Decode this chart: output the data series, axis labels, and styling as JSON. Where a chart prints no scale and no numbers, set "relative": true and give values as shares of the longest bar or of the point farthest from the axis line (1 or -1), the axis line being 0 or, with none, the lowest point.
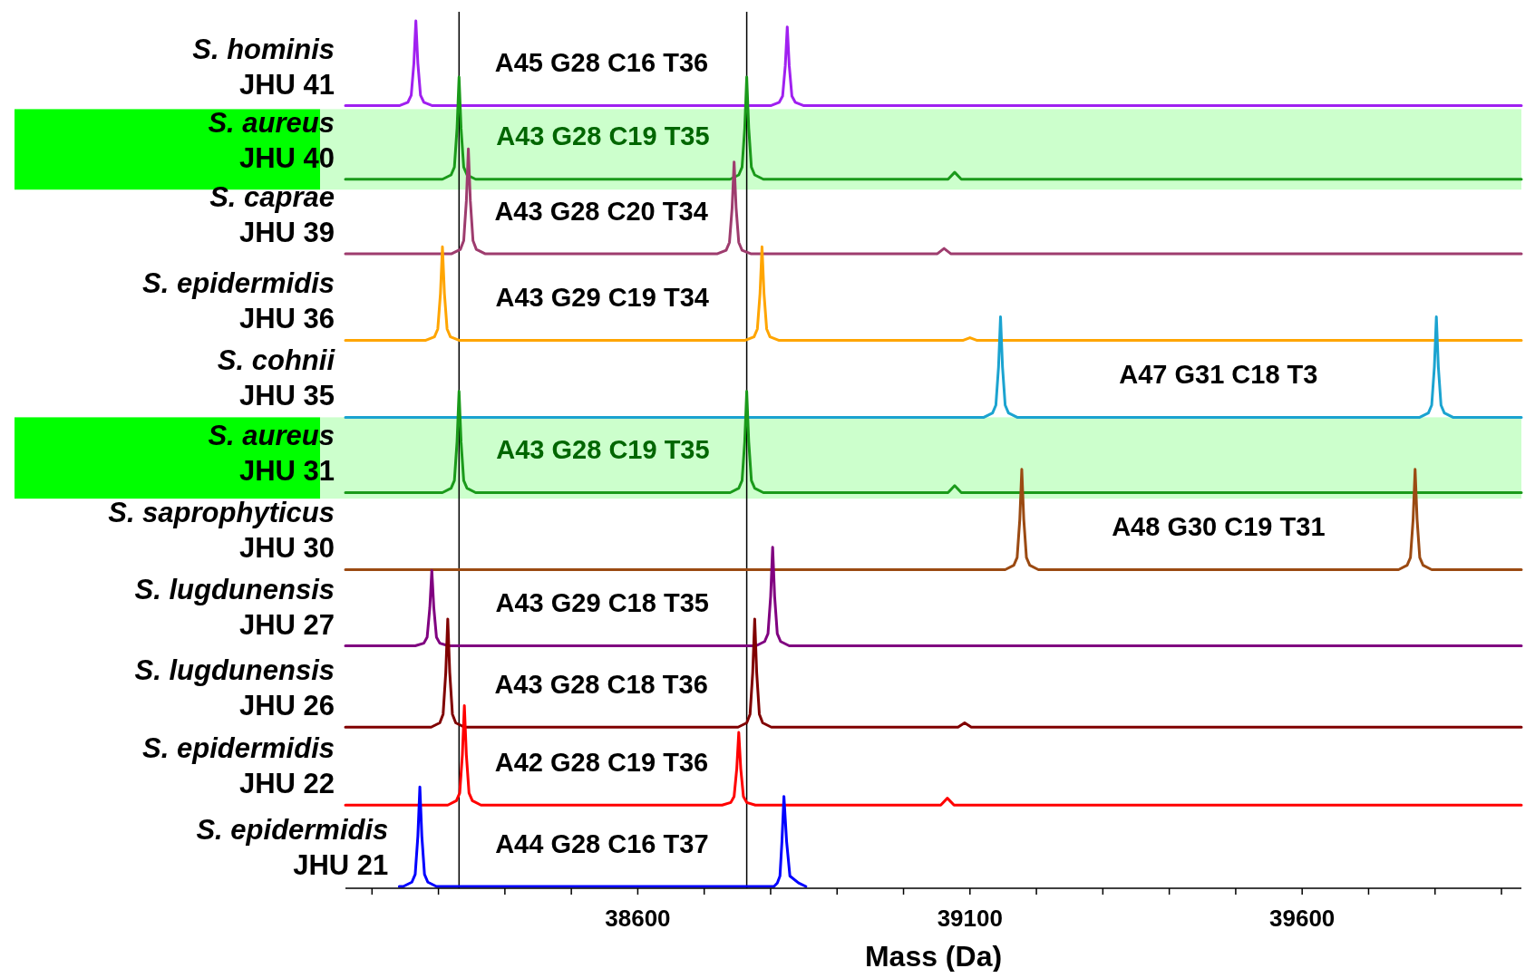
{
  "chart_data": {
    "type": "line",
    "relative": true,
    "xlabel": "Mass (Da)",
    "xlim": [
      38160,
      39930
    ],
    "xticks": [
      {
        "value": 38200,
        "label": null
      },
      {
        "value": 38300,
        "label": null
      },
      {
        "value": 38400,
        "label": null
      },
      {
        "value": 38500,
        "label": null
      },
      38600,
      {
        "value": 38700,
        "label": null
      },
      {
        "value": 38800,
        "label": null
      },
      {
        "value": 38900,
        "label": null
      },
      {
        "value": 39000,
        "label": null
      },
      39100,
      {
        "value": 39200,
        "label": null
      },
      {
        "value": 39300,
        "label": null
      },
      {
        "value": 39400,
        "label": null
      },
      {
        "value": 39500,
        "label": null
      },
      39600,
      {
        "value": 39700,
        "label": null
      },
      {
        "value": 39800,
        "label": null
      },
      {
        "value": 39900,
        "label": null
      }
    ],
    "ref_lines": [
      {
        "axis": "x",
        "value": 38331,
        "color": "#000000"
      },
      {
        "axis": "x",
        "value": 38764,
        "color": "#000000"
      }
    ],
    "bands": [
      {
        "axis": "y",
        "from": 0.805,
        "to": 0.898,
        "color": "#ccffcc"
      },
      {
        "axis": "y",
        "from": 0.448,
        "to": 0.542,
        "color": "#ccffcc"
      }
    ],
    "annotations": [
      "A45 G28 C16 T36",
      "A43 G28 C19 T35",
      "A43 G28 C20 T34",
      "A43 G29 C19 T34",
      "A47 G31 C18 T3",
      "A43 G28 C19 T35",
      "A48 G30 C19 T31",
      "A43 G29 C18 T35",
      "A43 G28 C18 T36",
      "A42 G28 C19 T36",
      "A44 G28 C16 T37"
    ],
    "series": [
      {
        "name": "S. hominis JHU 41",
        "color": "#a020f0",
        "x": [
          38160,
          38241,
          38254,
          38259,
          38263,
          38266,
          38269,
          38273,
          38278,
          38291,
          38800,
          38813,
          38818,
          38822,
          38825,
          38828,
          38832,
          38837,
          38850,
          39930
        ],
        "values": [
          0.902,
          0.902,
          0.906,
          0.914,
          0.951,
          1,
          0.951,
          0.914,
          0.906,
          0.902,
          0.902,
          0.906,
          0.913,
          0.948,
          0.993,
          0.948,
          0.913,
          0.906,
          0.902,
          0.902
        ]
      },
      {
        "name": "S. aureus JHU 40",
        "color": "#1a9a1a",
        "x": [
          38160,
          38306,
          38319,
          38324,
          38328,
          38331,
          38334,
          38338,
          38343,
          38356,
          38739,
          38752,
          38757,
          38761,
          38764,
          38767,
          38771,
          38776,
          38789,
          39067,
          39077,
          39087,
          39930
        ],
        "values": [
          0.817,
          0.817,
          0.822,
          0.831,
          0.876,
          0.935,
          0.876,
          0.831,
          0.822,
          0.817,
          0.817,
          0.822,
          0.831,
          0.876,
          0.935,
          0.876,
          0.831,
          0.822,
          0.817,
          0.817,
          0.825,
          0.817,
          0.817
        ]
      },
      {
        "name": "S. caprae JHU 39",
        "color": "#9e3c6e",
        "x": [
          38160,
          38320,
          38333,
          38338,
          38342,
          38345,
          38348,
          38352,
          38357,
          38370,
          38720,
          38733,
          38738,
          38742,
          38745,
          38748,
          38752,
          38757,
          38770,
          39051,
          39061,
          39071,
          39930
        ],
        "values": [
          0.731,
          0.731,
          0.736,
          0.746,
          0.792,
          0.852,
          0.792,
          0.746,
          0.736,
          0.731,
          0.731,
          0.735,
          0.744,
          0.784,
          0.837,
          0.784,
          0.744,
          0.735,
          0.731,
          0.731,
          0.737,
          0.731,
          0.731
        ]
      },
      {
        "name": "S. epidermidis JHU 36",
        "color": "#ffa500",
        "x": [
          38160,
          38281,
          38294,
          38299,
          38303,
          38306,
          38309,
          38313,
          38318,
          38331,
          38762,
          38775,
          38780,
          38784,
          38787,
          38790,
          38794,
          38799,
          38812,
          39090,
          39100,
          39110,
          39930
        ],
        "values": [
          0.631,
          0.631,
          0.635,
          0.644,
          0.685,
          0.739,
          0.685,
          0.644,
          0.635,
          0.631,
          0.631,
          0.635,
          0.644,
          0.685,
          0.739,
          0.685,
          0.644,
          0.635,
          0.631,
          0.631,
          0.634,
          0.631,
          0.631
        ]
      },
      {
        "name": "S. cohnii JHU 35",
        "color": "#1ba3d0",
        "x": [
          38160,
          39121,
          39134,
          39139,
          39143,
          39146,
          39149,
          39153,
          39158,
          39171,
          39777,
          39790,
          39795,
          39799,
          39802,
          39805,
          39809,
          39814,
          39827,
          39930
        ],
        "values": [
          0.542,
          0.542,
          0.547,
          0.556,
          0.6,
          0.658,
          0.6,
          0.556,
          0.547,
          0.542,
          0.542,
          0.547,
          0.556,
          0.6,
          0.658,
          0.6,
          0.556,
          0.547,
          0.542,
          0.542
        ]
      },
      {
        "name": "S. aureus JHU 31",
        "color": "#1a9a1a",
        "x": [
          38160,
          38306,
          38319,
          38324,
          38328,
          38331,
          38334,
          38338,
          38343,
          38356,
          38739,
          38752,
          38757,
          38761,
          38764,
          38767,
          38771,
          38776,
          38789,
          39067,
          39077,
          39087,
          39930
        ],
        "values": [
          0.455,
          0.455,
          0.46,
          0.469,
          0.514,
          0.572,
          0.514,
          0.469,
          0.46,
          0.455,
          0.455,
          0.46,
          0.469,
          0.514,
          0.572,
          0.514,
          0.469,
          0.46,
          0.455,
          0.455,
          0.463,
          0.455,
          0.455
        ]
      },
      {
        "name": "S. saprophyticus JHU 30",
        "color": "#9b4a12",
        "x": [
          38160,
          39153,
          39166,
          39171,
          39175,
          39178,
          39181,
          39185,
          39190,
          39203,
          39745,
          39758,
          39763,
          39767,
          39770,
          39773,
          39777,
          39782,
          39795,
          39930
        ],
        "values": [
          0.366,
          0.366,
          0.371,
          0.38,
          0.424,
          0.482,
          0.424,
          0.38,
          0.371,
          0.366,
          0.366,
          0.371,
          0.38,
          0.424,
          0.482,
          0.424,
          0.38,
          0.371,
          0.366,
          0.366
        ]
      },
      {
        "name": "S. lugdunensis JHU 27",
        "color": "#800080",
        "x": [
          38160,
          38265,
          38278,
          38283,
          38287,
          38290,
          38293,
          38297,
          38302,
          38315,
          38778,
          38791,
          38796,
          38800,
          38803,
          38806,
          38810,
          38815,
          38828,
          39930
        ],
        "values": [
          0.278,
          0.278,
          0.281,
          0.288,
          0.322,
          0.365,
          0.322,
          0.288,
          0.281,
          0.278,
          0.278,
          0.283,
          0.292,
          0.335,
          0.392,
          0.335,
          0.292,
          0.283,
          0.278,
          0.278
        ]
      },
      {
        "name": "S. lugdunensis JHU 26",
        "color": "#800000",
        "x": [
          38160,
          38289,
          38302,
          38307,
          38311,
          38314,
          38317,
          38321,
          38326,
          38339,
          38751,
          38764,
          38769,
          38773,
          38776,
          38779,
          38783,
          38788,
          38801,
          39082,
          39092,
          39102,
          39930
        ],
        "values": [
          0.184,
          0.184,
          0.189,
          0.199,
          0.247,
          0.309,
          0.247,
          0.199,
          0.189,
          0.184,
          0.184,
          0.189,
          0.199,
          0.247,
          0.309,
          0.247,
          0.199,
          0.189,
          0.184,
          0.184,
          0.189,
          0.184,
          0.184
        ]
      },
      {
        "name": "S. epidermidis JHU 22",
        "color": "#ff0000",
        "x": [
          38160,
          38314,
          38327,
          38332,
          38336,
          38339,
          38342,
          38346,
          38351,
          38364,
          38727,
          38740,
          38745,
          38749,
          38752,
          38755,
          38759,
          38764,
          38777,
          39056,
          39066,
          39076,
          39930
        ],
        "values": [
          0.094,
          0.094,
          0.099,
          0.108,
          0.152,
          0.209,
          0.152,
          0.108,
          0.099,
          0.094,
          0.094,
          0.097,
          0.104,
          0.136,
          0.178,
          0.136,
          0.104,
          0.097,
          0.094,
          0.094,
          0.102,
          0.094,
          0.094
        ]
      },
      {
        "name": "S. epidermidis JHU 21",
        "color": "#0000ff",
        "x": [
          38241,
          38247,
          38260,
          38265,
          38269,
          38272,
          38275,
          38279,
          38284,
          38297,
          38792,
          38805,
          38810,
          38814,
          38817,
          38820,
          38824,
          38829,
          38842,
          38853
        ],
        "values": [
          0,
          0,
          0.005,
          0.014,
          0.058,
          0.115,
          0.058,
          0.014,
          0.005,
          0,
          0,
          0,
          0.004,
          0.012,
          0.052,
          0.104,
          0.052,
          0.012,
          0.004,
          0
        ]
      }
    ]
  }
}
